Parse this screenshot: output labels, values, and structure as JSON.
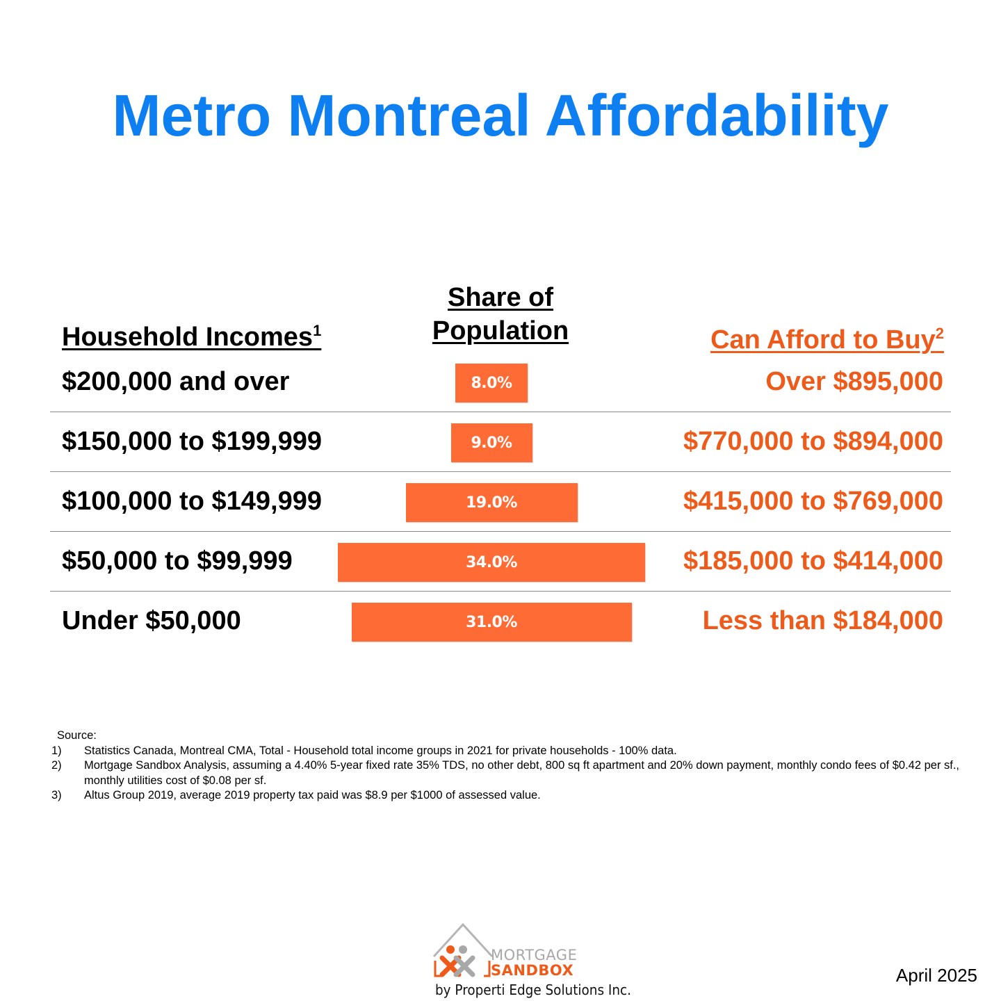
{
  "title": "Metro Montreal Affordability",
  "headers": {
    "income": "Household Incomes",
    "income_sup": "1",
    "share_line1": "Share of",
    "share_line2": "Population",
    "afford": "Can Afford to Buy",
    "afford_sup": "2"
  },
  "colors": {
    "title": "#0d7ff0",
    "accent": "#ee5a1a",
    "bar": "#ff6b35",
    "bar_text": "#ffffff"
  },
  "chart_data": {
    "type": "bar",
    "orientation": "horizontal-centered",
    "categories": [
      "$200,000 and over",
      "$150,000 to $199,999",
      "$100,000 to $149,999",
      "$50,000 to $99,999",
      "Under $50,000"
    ],
    "values": [
      8.0,
      9.0,
      19.0,
      34.0,
      31.0
    ],
    "value_labels": [
      "8.0%",
      "9.0%",
      "19.0%",
      "34.0%",
      "31.0%"
    ],
    "afford": [
      "Over $895,000",
      "$770,000 to $894,000",
      "$415,000 to $769,000",
      "$185,000 to $414,000",
      "Less than $184,000"
    ],
    "unit": "%"
  },
  "source": {
    "title": "Source:",
    "notes": [
      {
        "num": "1)",
        "text": "Statistics Canada, Montreal CMA, Total - Household total income groups in 2021 for private households - 100% data."
      },
      {
        "num": "2)",
        "text": "Mortgage Sandbox Analysis, assuming a 4.40% 5-year fixed rate 35% TDS, no other debt, 800 sq ft apartment and 20% down payment, monthly condo fees of $0.42 per sf., monthly utilities cost of $0.08 per sf."
      },
      {
        "num": "3)",
        "text": "Altus Group 2019, average 2019 property tax paid was $8.9 per $1000 of assessed value."
      }
    ]
  },
  "logo": {
    "line1": "MORTGAGE",
    "line2": "SANDBOX",
    "byline": "by Properti Edge Solutions Inc."
  },
  "date": "April 2025"
}
